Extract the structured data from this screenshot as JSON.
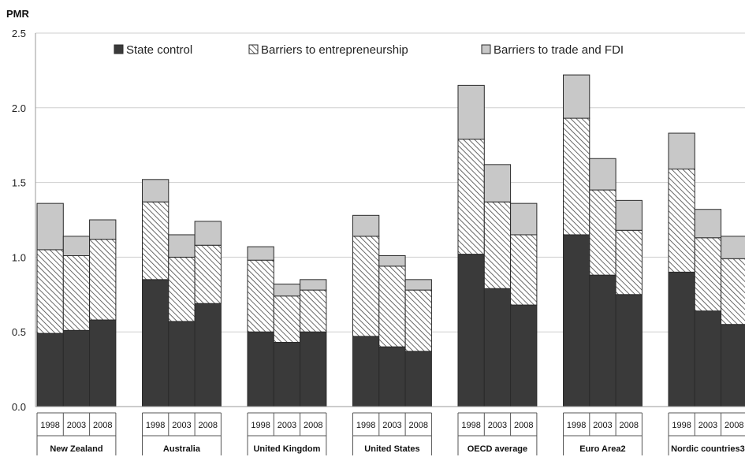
{
  "chart_data": {
    "type": "bar",
    "stacked": true,
    "ylabel": "PMR",
    "ylim": [
      0,
      2.5
    ],
    "yticks": [
      "0.0",
      "0.5",
      "1.0",
      "1.5",
      "2.0",
      "2.5"
    ],
    "grid": true,
    "legend_position": "top",
    "groups": [
      {
        "name": "New Zealand",
        "years": [
          "1998",
          "2003",
          "2008"
        ],
        "state_control": [
          0.49,
          0.51,
          0.58
        ],
        "entrepreneurship": [
          0.56,
          0.5,
          0.54
        ],
        "trade_fdi": [
          0.31,
          0.13,
          0.13
        ]
      },
      {
        "name": "Australia",
        "years": [
          "1998",
          "2003",
          "2008"
        ],
        "state_control": [
          0.85,
          0.57,
          0.69
        ],
        "entrepreneurship": [
          0.52,
          0.43,
          0.39
        ],
        "trade_fdi": [
          0.15,
          0.15,
          0.16
        ]
      },
      {
        "name": "United Kingdom",
        "years": [
          "1998",
          "2003",
          "2008"
        ],
        "state_control": [
          0.5,
          0.43,
          0.5
        ],
        "entrepreneurship": [
          0.48,
          0.31,
          0.28
        ],
        "trade_fdi": [
          0.09,
          0.08,
          0.07
        ]
      },
      {
        "name": "United States",
        "years": [
          "1998",
          "2003",
          "2008"
        ],
        "state_control": [
          0.47,
          0.4,
          0.37
        ],
        "entrepreneurship": [
          0.67,
          0.54,
          0.41
        ],
        "trade_fdi": [
          0.14,
          0.07,
          0.07
        ]
      },
      {
        "name": "OECD average",
        "years": [
          "1998",
          "2003",
          "2008"
        ],
        "state_control": [
          1.02,
          0.79,
          0.68
        ],
        "entrepreneurship": [
          0.77,
          0.58,
          0.47
        ],
        "trade_fdi": [
          0.36,
          0.25,
          0.21
        ]
      },
      {
        "name": "Euro Area2",
        "years": [
          "1998",
          "2003",
          "2008"
        ],
        "state_control": [
          1.15,
          0.88,
          0.75
        ],
        "entrepreneurship": [
          0.78,
          0.57,
          0.43
        ],
        "trade_fdi": [
          0.29,
          0.21,
          0.2
        ]
      },
      {
        "name": "Nordic countries3",
        "years": [
          "1998",
          "2003",
          "2008"
        ],
        "state_control": [
          0.9,
          0.64,
          0.55
        ],
        "entrepreneurship": [
          0.69,
          0.49,
          0.44
        ],
        "trade_fdi": [
          0.24,
          0.19,
          0.15
        ]
      }
    ],
    "series": [
      {
        "key": "state_control",
        "name": "State control",
        "color": "#3a3a3a"
      },
      {
        "key": "entrepreneurship",
        "name": "Barriers to entrepreneurship",
        "color": "#ffffff",
        "pattern": "diagonal-hatch"
      },
      {
        "key": "trade_fdi",
        "name": "Barriers to trade and FDI",
        "color": "#c8c8c8"
      }
    ]
  }
}
